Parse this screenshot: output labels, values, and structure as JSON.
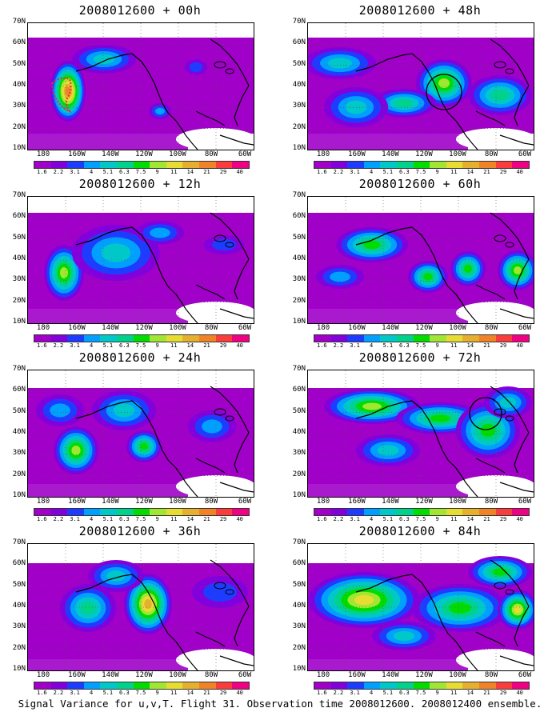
{
  "caption": "Signal Variance for u,v,T. Flight 31. Observation time 2008012600. 2008012400 ensemble.",
  "panels": [
    {
      "title": "2008012600 + 00h",
      "circle": null,
      "dots": true
    },
    {
      "title": "2008012600 + 12h",
      "circle": null,
      "dots": false
    },
    {
      "title": "2008012600 + 24h",
      "circle": null,
      "dots": false
    },
    {
      "title": "2008012600 + 36h",
      "circle": null,
      "dots": false
    },
    {
      "title": "2008012600 + 48h",
      "circle": "west-coast",
      "dots": false
    },
    {
      "title": "2008012600 + 60h",
      "circle": null,
      "dots": false
    },
    {
      "title": "2008012600 + 72h",
      "circle": "great-lakes",
      "dots": false
    },
    {
      "title": "2008012600 + 84h",
      "circle": null,
      "dots": false
    }
  ],
  "lat_labels": [
    "70N",
    "60N",
    "50N",
    "40N",
    "30N",
    "20N",
    "10N"
  ],
  "lon_labels": [
    "180",
    "160W",
    "140W",
    "120W",
    "100W",
    "80W",
    "60W"
  ],
  "colorbar_labels": [
    "1.6",
    "2.2",
    "3.1",
    "4",
    "5.1",
    "6.3",
    "7.5",
    "9",
    "11",
    "14",
    "21",
    "29",
    "40"
  ],
  "colorbar_colors": [
    "#a000c8",
    "#8200dc",
    "#1e3cff",
    "#00a0ff",
    "#00c8c8",
    "#00d28c",
    "#00dc00",
    "#a0e632",
    "#e6dc32",
    "#e6af2d",
    "#f08228",
    "#fa3c3c",
    "#f00082"
  ]
}
